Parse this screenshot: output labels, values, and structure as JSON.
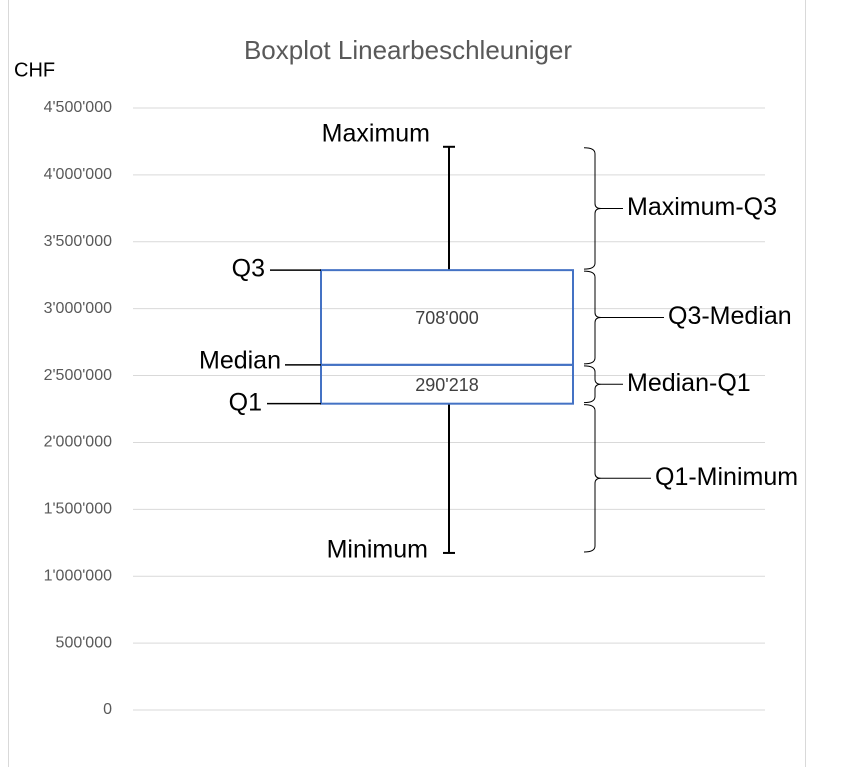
{
  "chart_data": {
    "type": "box",
    "title": "Boxplot  Linearbeschleuniger",
    "y_label": "CHF",
    "color": "#4472c4",
    "whisker_color": "#000000",
    "grid": true,
    "ylim": [
      0,
      4500000
    ],
    "yticks": [
      0,
      {
        "value": 500000,
        "label": "500'000"
      },
      {
        "value": 1000000,
        "label": "1'000'000"
      },
      {
        "value": 1500000,
        "label": "1'500'000"
      },
      {
        "value": 2000000,
        "label": "2'000'000"
      },
      {
        "value": 2500000,
        "label": "2'500'000"
      },
      {
        "value": 3000000,
        "label": "3'000'000"
      },
      {
        "value": 3500000,
        "label": "3'500'000"
      },
      {
        "value": 4000000,
        "label": "4'000'000"
      },
      {
        "value": 4500000,
        "label": "4'500'000"
      }
    ],
    "base": {
      "name": "Minimum",
      "value": 1174000
    },
    "segments": [
      {
        "name": "Q1-Minimum",
        "level": "Q1",
        "value": 1115782
      },
      {
        "name": "Median-Q1",
        "level": "Median",
        "value": 290218,
        "value_label": "290'218"
      },
      {
        "name": "Q3-Median",
        "level": "Q3",
        "value": 708000,
        "value_label": "708'000"
      },
      {
        "name": "Maximum-Q3",
        "level": "Maximum",
        "value": 922000
      }
    ]
  }
}
